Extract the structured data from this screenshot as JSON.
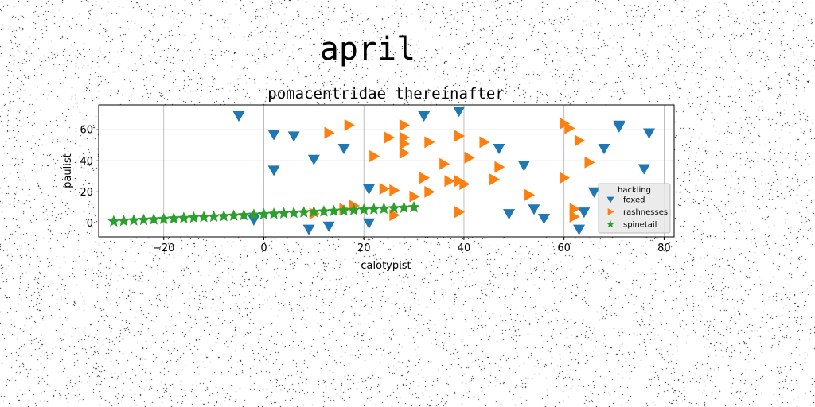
{
  "chart_data": {
    "type": "scatter",
    "suptitle": "april",
    "title": "pomacentridae thereinafter",
    "xlabel": "calotypist",
    "ylabel": "paulist",
    "xlim": [
      -33,
      82
    ],
    "ylim": [
      -9,
      76
    ],
    "xticks": [
      -20,
      0,
      20,
      40,
      60,
      80
    ],
    "yticks": [
      0,
      20,
      40,
      60
    ],
    "grid": true,
    "legend": {
      "title": "hackling",
      "placement": "right"
    },
    "series": [
      {
        "name": "foxed",
        "marker": "triangle-down",
        "color": "#1f77b4",
        "points": [
          [
            -5,
            69
          ],
          [
            2,
            57
          ],
          [
            6,
            56
          ],
          [
            2,
            34
          ],
          [
            10,
            41
          ],
          [
            16,
            48
          ],
          [
            21,
            22
          ],
          [
            21,
            0
          ],
          [
            32,
            69
          ],
          [
            39,
            72
          ],
          [
            13,
            -2
          ],
          [
            9,
            -4
          ],
          [
            -2,
            2
          ],
          [
            47,
            48
          ],
          [
            52,
            37
          ],
          [
            49,
            6
          ],
          [
            54,
            9
          ],
          [
            56,
            3
          ],
          [
            64,
            7
          ],
          [
            63,
            -4
          ],
          [
            66,
            20
          ],
          [
            68,
            48
          ],
          [
            71,
            63
          ],
          [
            71,
            62
          ],
          [
            77,
            58
          ],
          [
            76,
            35
          ]
        ]
      },
      {
        "name": "rashnesses",
        "marker": "triangle-right",
        "color": "#ff7f0e",
        "points": [
          [
            13,
            58
          ],
          [
            17,
            63
          ],
          [
            22,
            43
          ],
          [
            25,
            55
          ],
          [
            28,
            55
          ],
          [
            28,
            63
          ],
          [
            28,
            45
          ],
          [
            28,
            51
          ],
          [
            24,
            22
          ],
          [
            26,
            21
          ],
          [
            26,
            5
          ],
          [
            30,
            17
          ],
          [
            33,
            52
          ],
          [
            32,
            29
          ],
          [
            33,
            20
          ],
          [
            36,
            38
          ],
          [
            37,
            27
          ],
          [
            39,
            56
          ],
          [
            39,
            27
          ],
          [
            40,
            25
          ],
          [
            41,
            42
          ],
          [
            44,
            52
          ],
          [
            46,
            28
          ],
          [
            47,
            36
          ],
          [
            53,
            18
          ],
          [
            60,
            64
          ],
          [
            61,
            61
          ],
          [
            60,
            29
          ],
          [
            63,
            53
          ],
          [
            65,
            39
          ],
          [
            62,
            9
          ],
          [
            62,
            4
          ],
          [
            39,
            7
          ],
          [
            10,
            6
          ],
          [
            16,
            9
          ],
          [
            18,
            11
          ]
        ]
      },
      {
        "name": "spinetail",
        "marker": "star",
        "color": "#2ca02c",
        "points": [
          [
            -30,
            1
          ],
          [
            -28,
            1.3
          ],
          [
            -26,
            1.6
          ],
          [
            -24,
            1.9
          ],
          [
            -22,
            2.2
          ],
          [
            -20,
            2.5
          ],
          [
            -18,
            2.8
          ],
          [
            -16,
            3.1
          ],
          [
            -14,
            3.4
          ],
          [
            -12,
            3.7
          ],
          [
            -10,
            4
          ],
          [
            -8,
            4.3
          ],
          [
            -6,
            4.6
          ],
          [
            -4,
            4.9
          ],
          [
            -2,
            5.2
          ],
          [
            0,
            5.5
          ],
          [
            2,
            5.8
          ],
          [
            4,
            6.1
          ],
          [
            6,
            6.4
          ],
          [
            8,
            6.7
          ],
          [
            10,
            7
          ],
          [
            12,
            7.3
          ],
          [
            14,
            7.6
          ],
          [
            16,
            7.9
          ],
          [
            18,
            8.2
          ],
          [
            20,
            8.5
          ],
          [
            22,
            8.8
          ],
          [
            24,
            9.1
          ],
          [
            26,
            9.4
          ],
          [
            28,
            9.7
          ],
          [
            30,
            10
          ]
        ]
      }
    ]
  }
}
